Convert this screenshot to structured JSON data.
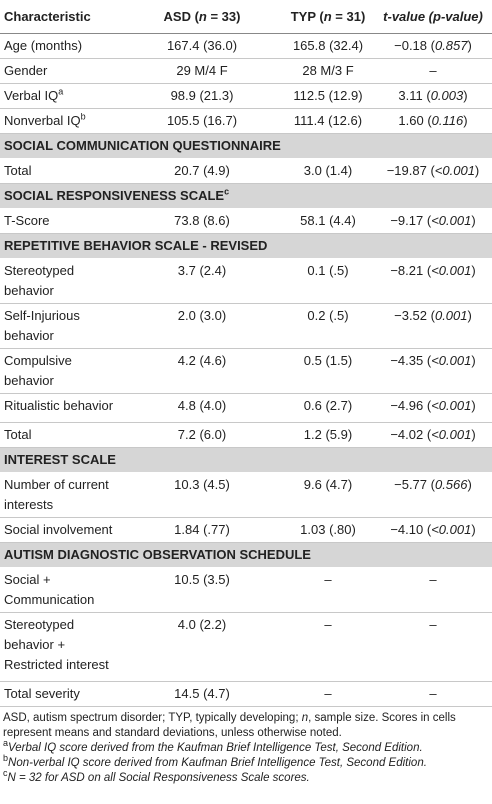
{
  "table": {
    "header": [
      "Characteristic",
      [
        "ASD (",
        {
          "i": "n"
        },
        " = 33)"
      ],
      [
        "TYP (",
        {
          "i": "n"
        },
        " = 31)"
      ],
      [
        {
          "i": "t-value (p-value)"
        }
      ]
    ],
    "rows": [
      {
        "cells": [
          "Age (months)",
          "167.4 (36.0)",
          "165.8 (32.4)",
          [
            "−0.18 (",
            {
              "i": "0.857"
            },
            ")"
          ]
        ]
      },
      {
        "cells": [
          "Gender",
          "29 M/4 F",
          "28 M/3 F",
          "–"
        ]
      },
      {
        "cells": [
          [
            "Verbal IQ",
            {
              "sup": "a"
            }
          ],
          "98.9 (21.3)",
          "112.5 (12.9)",
          [
            "3.11 (",
            {
              "i": "0.003"
            },
            ")"
          ]
        ]
      },
      {
        "cells": [
          [
            "Nonverbal IQ",
            {
              "sup": "b"
            }
          ],
          "105.5 (16.7)",
          "111.4 (12.6)",
          [
            "1.60 (",
            {
              "i": "0.116"
            },
            ")"
          ]
        ]
      },
      {
        "section": "SOCIAL COMMUNICATION QUESTIONNAIRE"
      },
      {
        "cells": [
          "Total",
          "20.7 (4.9)",
          "3.0 (1.4)",
          [
            "−19.87 (",
            {
              "i": "<0.001"
            },
            ")"
          ]
        ]
      },
      {
        "section": [
          "SOCIAL RESPONSIVENESS SCALE",
          {
            "sup": "c"
          }
        ]
      },
      {
        "cells": [
          "T-Score",
          "73.8 (8.6)",
          "58.1 (4.4)",
          [
            "−9.17 (",
            {
              "i": "<0.001"
            },
            ")"
          ]
        ]
      },
      {
        "section": "REPETITIVE BEHAVIOR SCALE - REVISED"
      },
      {
        "cells": [
          "Stereotyped behavior",
          "3.7 (2.4)",
          "0.1 (.5)",
          [
            "−8.21 (",
            {
              "i": "<0.001"
            },
            ")"
          ]
        ]
      },
      {
        "cells": [
          "Self-Injurious behavior",
          "2.0 (3.0)",
          "0.2 (.5)",
          [
            "−3.52 (",
            {
              "i": "0.001"
            },
            ")"
          ]
        ]
      },
      {
        "cells": [
          "Compulsive behavior",
          "4.2 (4.6)",
          "0.5 (1.5)",
          [
            "−4.35 (",
            {
              "i": "<0.001"
            },
            ")"
          ]
        ]
      },
      {
        "cells": [
          "Ritualistic behavior",
          "4.8 (4.0)",
          "0.6 (2.7)",
          [
            "−4.96 (",
            {
              "i": "<0.001"
            },
            ")"
          ]
        ]
      },
      {
        "cells": [
          "Total",
          "7.2 (6.0)",
          "1.2 (5.9)",
          [
            "−4.02 (",
            {
              "i": "<0.001"
            },
            ")"
          ]
        ]
      },
      {
        "section": "INTEREST SCALE"
      },
      {
        "cells": [
          "Number of current interests",
          "10.3 (4.5)",
          "9.6 (4.7)",
          [
            "−5.77 (",
            {
              "i": "0.566"
            },
            ")"
          ]
        ]
      },
      {
        "cells": [
          "Social involvement",
          "1.84 (.77)",
          "1.03 (.80)",
          [
            "−4.10 (",
            {
              "i": "<0.001"
            },
            ")"
          ]
        ]
      },
      {
        "section": "AUTISM DIAGNOSTIC OBSERVATION SCHEDULE"
      },
      {
        "cells": [
          "Social + Communication",
          "10.5 (3.5)",
          "–",
          "–"
        ]
      },
      {
        "cells": [
          "Stereotyped behavior + Restricted interest",
          "4.0 (2.2)",
          "–",
          "–"
        ]
      },
      {
        "cells": [
          "Total severity",
          "14.5 (4.7)",
          "–",
          "–"
        ]
      }
    ]
  },
  "notes": [
    [
      "ASD, autism spectrum disorder; TYP, typically developing; ",
      {
        "i": "n"
      },
      ", sample size. Scores in cells represent means and standard deviations, unless otherwise noted."
    ],
    [
      {
        "sup": "a"
      },
      {
        "i": "Verbal IQ score derived from the Kaufman Brief Intelligence Test, Second Edition."
      }
    ],
    [
      {
        "sup": "b"
      },
      {
        "i": "Non-verbal IQ score derived from Kaufman Brief Intelligence Test, Second Edition."
      }
    ],
    [
      {
        "sup": "c"
      },
      {
        "i": "N = 32 for ASD on all Social Responsiveness Scale scores."
      }
    ]
  ]
}
